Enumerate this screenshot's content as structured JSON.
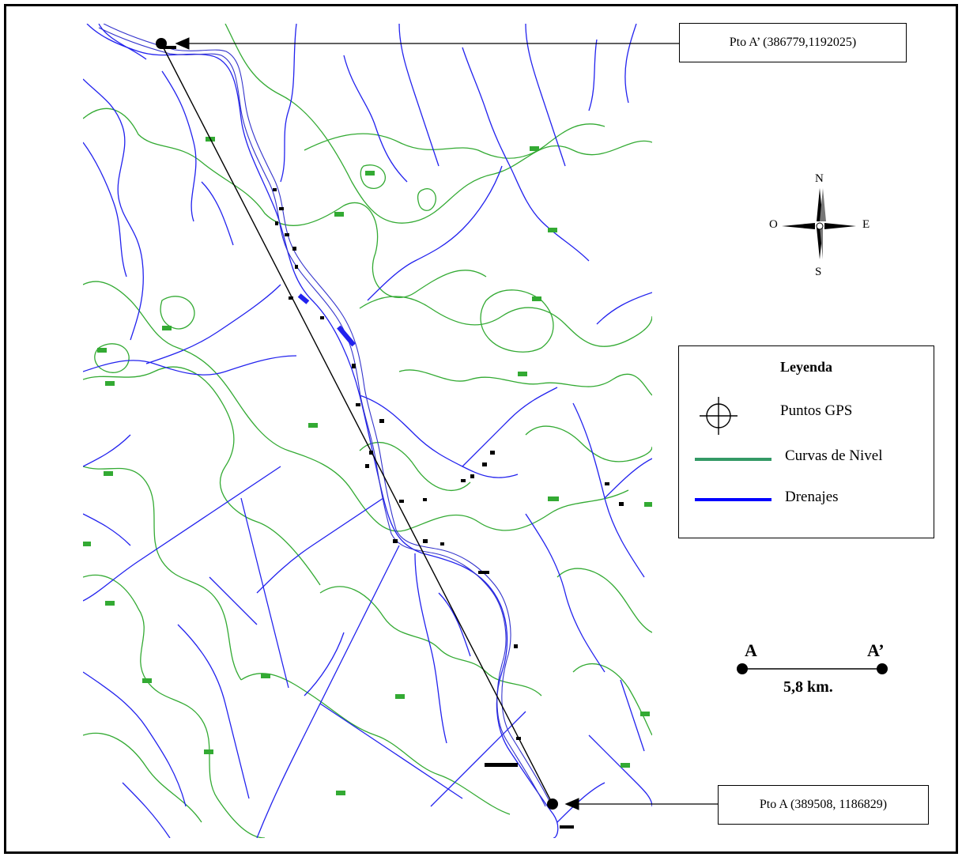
{
  "points": {
    "a_prime": {
      "label": "Pto A’ (386779,1192025)"
    },
    "a": {
      "label": "Pto A (389508, 1186829)"
    }
  },
  "legend": {
    "title": "Leyenda",
    "items": [
      {
        "label": "Puntos  GPS",
        "icon": "crosshair-icon"
      },
      {
        "label": "Curvas de Nivel",
        "color": "#339966"
      },
      {
        "label": "Drenajes",
        "color": "#0000ff"
      }
    ]
  },
  "compass": {
    "n": "N",
    "s": "S",
    "e": "E",
    "o": "O"
  },
  "scale": {
    "left": "A",
    "right": "A’",
    "distance": "5,8 km."
  },
  "colors": {
    "contour": "#33aa33",
    "drainage": "#2222ee",
    "river": "#3333cc"
  }
}
